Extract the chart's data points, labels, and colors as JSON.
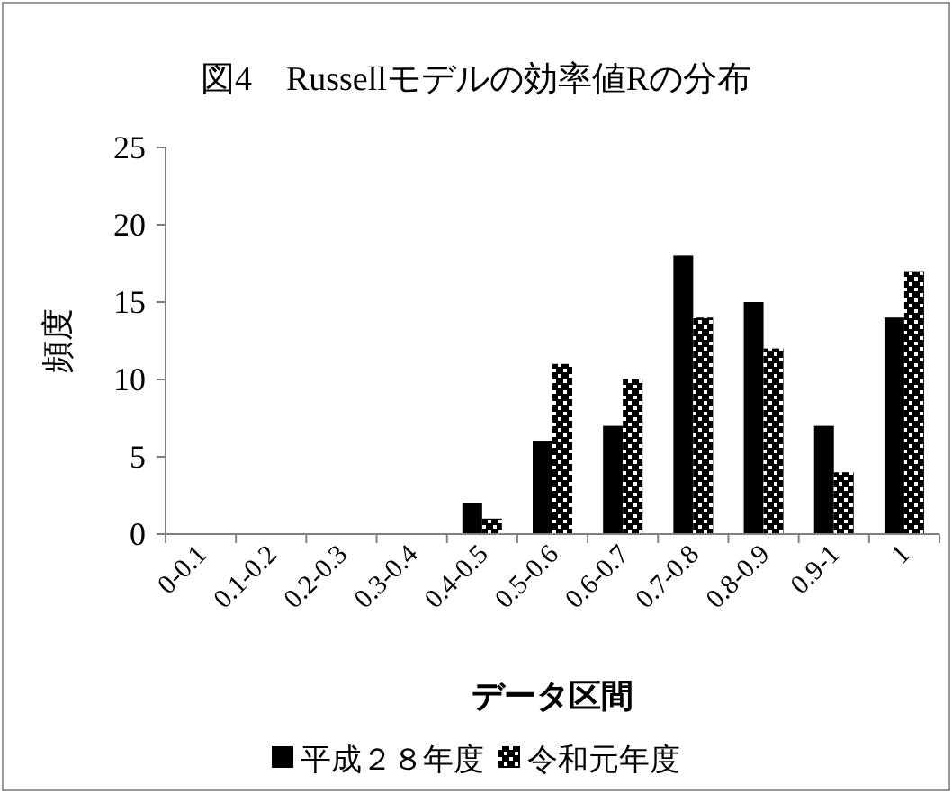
{
  "chart_data": {
    "type": "bar",
    "title": "図4　Russellモデルの効率値Rの分布",
    "xlabel": "データ区間",
    "ylabel": "頻度",
    "categories": [
      "0-0.1",
      "0.1-0.2",
      "0.2-0.3",
      "0.3-0.4",
      "0.4-0.5",
      "0.5-0.6",
      "0.6-0.7",
      "0.7-0.8",
      "0.8-0.9",
      "0.9-1",
      "1"
    ],
    "series": [
      {
        "name": "平成２８年度",
        "color": "#000000",
        "values": [
          0,
          0,
          0,
          0,
          2,
          6,
          7,
          18,
          15,
          7,
          14
        ]
      },
      {
        "name": "令和元年度",
        "color": "#000000",
        "values": [
          0,
          0,
          0,
          0,
          1,
          11,
          10,
          14,
          12,
          4,
          17
        ]
      }
    ],
    "ylim": [
      0,
      25
    ],
    "yticks": [
      0,
      5,
      10,
      15,
      20,
      25
    ],
    "legend": "bottom",
    "grid": false
  }
}
